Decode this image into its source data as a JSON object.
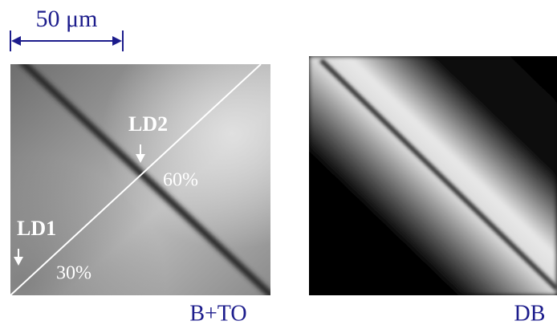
{
  "scale_bar": {
    "label": "50 μm"
  },
  "panels": [
    {
      "caption": "B+TO",
      "labels": [
        "LD2",
        "60%",
        "LD1",
        "30%"
      ]
    },
    {
      "caption": "DB"
    }
  ]
}
